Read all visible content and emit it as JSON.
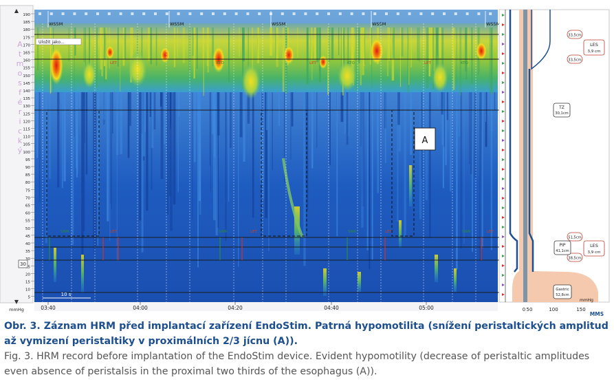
{
  "figure": {
    "pressure_axis": {
      "ticks": [
        "190",
        "185",
        "180",
        "175",
        "170",
        "165",
        "160",
        "155",
        "150",
        "145",
        "140",
        "135",
        "130",
        "125",
        "120",
        "115",
        "110",
        "105",
        "100",
        "95",
        "90",
        "85",
        "80",
        "75",
        "70",
        "65",
        "60",
        "55",
        "50",
        "45",
        "40",
        "35",
        "30",
        "25",
        "20",
        "15",
        "10",
        "5"
      ],
      "unit": "mmHg",
      "vertical_label": [
        "A",
        "t",
        "m",
        "o",
        "s",
        "f",
        "é",
        "r",
        "i",
        "c",
        "k",
        "ý"
      ]
    },
    "time_axis": {
      "ticks": [
        "03:40",
        "04:00",
        "04:20",
        "04:40",
        "05:00"
      ]
    },
    "top_markers": [
      "WS5M",
      "WS5M",
      "WS5M",
      "WS5M",
      "WS5M"
    ],
    "button_label": "Uložit jako...",
    "swallow_labels": [
      "LET",
      "KTO",
      "LET",
      "KTO",
      "LET",
      "KTO"
    ],
    "bottom_labels": [
      "SWR",
      "LET",
      "SWR",
      "LET",
      "SWR",
      "LET",
      "SWR",
      "LET"
    ],
    "box_label": "A",
    "scale_label": "10 s",
    "zoom_badge": "30",
    "right_panel": {
      "bubbles": [
        "33,5cm",
        "33,5cm",
        "51,5cm",
        "38,5cm"
      ],
      "boxes": [
        {
          "title": "LES",
          "value": "3,9 cm"
        },
        {
          "title": "TZ",
          "value": "30,1cm"
        },
        {
          "title": "PIP",
          "value": "41,1cm"
        },
        {
          "title": "LES",
          "value": "3,9 cm"
        },
        {
          "title": "Gastric",
          "value": "52,8cm"
        }
      ],
      "axis_ticks": [
        "0",
        "50",
        "100",
        "150"
      ],
      "axis_unit": "mmHg",
      "logo": "MMS"
    }
  },
  "caption": {
    "czech": "Obr. 3. Záznam HRM před implantací zařízení EndoStim. Patrná hypomotilita (snížení peristaltických amplitud až vymizení peristaltiky v proximálních 2/3 jícnu (A)).",
    "english": "Fig. 3. HRM record before implantation of the EndoStim device. Evident hypomotility (decrease of peristaltic amplitudes even absence of peristalsis in the proximal two thirds of the esophagus (A))."
  },
  "colors": {
    "background_blue": "#1d57b8",
    "caption_blue": "#1d4f8f",
    "caption_gray": "#555555",
    "high_pressure": "#e02010"
  }
}
